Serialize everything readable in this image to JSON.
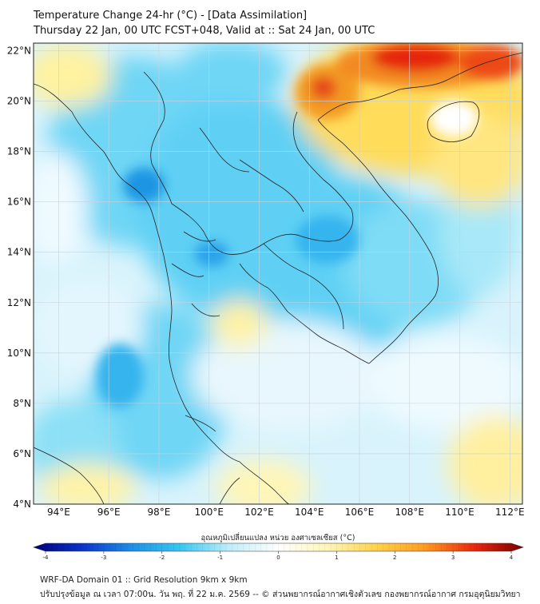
{
  "header": {
    "title": "Temperature Change 24-hr (°C) - [Data Assimilation]",
    "subtitle": "Thursday 22 Jan, 00 UTC FCST+048, Valid at :: Sat 24 Jan, 00 UTC"
  },
  "map": {
    "lat_labels": [
      "22°N",
      "20°N",
      "18°N",
      "16°N",
      "14°N",
      "12°N",
      "10°N",
      "8°N",
      "6°N",
      "4°N"
    ],
    "lon_labels": [
      "94°E",
      "96°E",
      "98°E",
      "100°E",
      "102°E",
      "104°E",
      "106°E",
      "108°E",
      "110°E",
      "112°E"
    ],
    "lat_values": [
      22,
      20,
      18,
      16,
      14,
      12,
      10,
      8,
      6,
      4
    ],
    "lon_values": [
      94,
      96,
      98,
      100,
      102,
      104,
      106,
      108,
      110,
      112
    ],
    "extent": {
      "lon_min": 93,
      "lon_max": 112.5,
      "lat_min": 4,
      "lat_max": 22.3
    },
    "colors": {
      "cool": "#29c5f0",
      "cold": "#1d8fe0",
      "warm": "#ffe680",
      "hot": "#f08020",
      "very_hot": "#e01a10",
      "border": "#222222",
      "grid": "#c8d2dc"
    }
  },
  "colorbar": {
    "label": "อุณหภูมิเปลี่ยนแปลง หน่วย องศาเซลเซียส (°C)",
    "ticks": [
      "-4",
      "-3",
      "-2",
      "-1",
      "0",
      "1",
      "2",
      "3",
      "4"
    ],
    "tick_values": [
      -4,
      -3,
      -2,
      -1,
      0,
      1,
      2,
      3,
      4
    ],
    "min": -4,
    "max": 4,
    "stops": [
      "#00007a",
      "#0b34c9",
      "#1e8fe8",
      "#36c8f2",
      "#bfeefa",
      "#ffffff",
      "#fff6b8",
      "#ffd24a",
      "#ff9a1e",
      "#e8280e",
      "#7a0000"
    ]
  },
  "footer": {
    "line1": "WRF-DA Domain 01 :: Grid Resolution 9km x 9km",
    "line2": "ปรับปรุงข้อมูล ณ เวลา 07:00น. วัน พฤ. ที่ 22 ม.ค. 2569 -- © ส่วนพยากรณ์อากาศเชิงตัวเลข กองพยากรณ์อากาศ กรมอุตุนิยมวิทยา"
  }
}
